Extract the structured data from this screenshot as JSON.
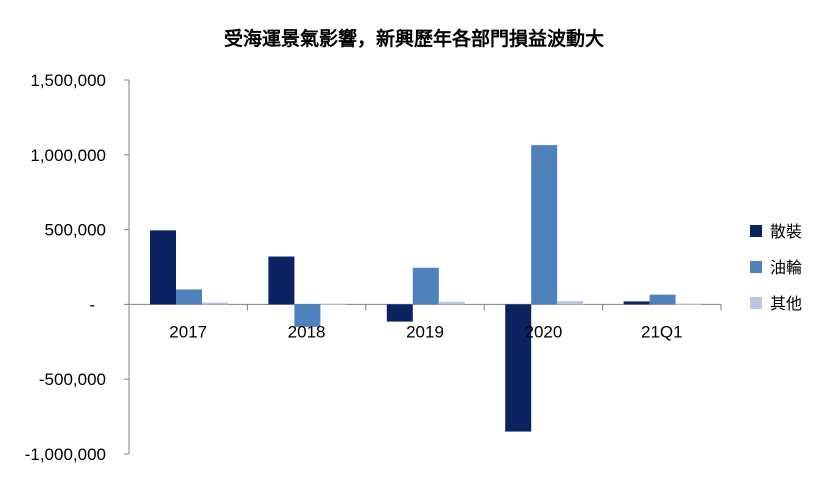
{
  "chart_data": {
    "type": "bar",
    "title": "受海運景氣影響，新興歷年各部門損益波動大",
    "categories": [
      "2017",
      "2018",
      "2019",
      "2020",
      "21Q1"
    ],
    "series": [
      {
        "name": "散裝",
        "color": "#0b2461",
        "values": [
          495000,
          320000,
          -115000,
          -850000,
          20000
        ]
      },
      {
        "name": "油輪",
        "color": "#4f81bd",
        "values": [
          100000,
          -150000,
          245000,
          1065000,
          65000
        ]
      },
      {
        "name": "其他",
        "color": "#b8c7e0",
        "values": [
          12000,
          5000,
          18000,
          22000,
          5000
        ]
      }
    ],
    "ylim": [
      -1000000,
      1500000
    ],
    "yticks": [
      {
        "value": 1500000,
        "label": "1,500,000"
      },
      {
        "value": 1000000,
        "label": "1,000,000"
      },
      {
        "value": 500000,
        "label": "500,000"
      },
      {
        "value": 0,
        "label": "-"
      },
      {
        "value": -500000,
        "label": "-500,000"
      },
      {
        "value": -1000000,
        "label": "-1,000,000"
      }
    ],
    "grid": false,
    "legend_position": "right"
  }
}
